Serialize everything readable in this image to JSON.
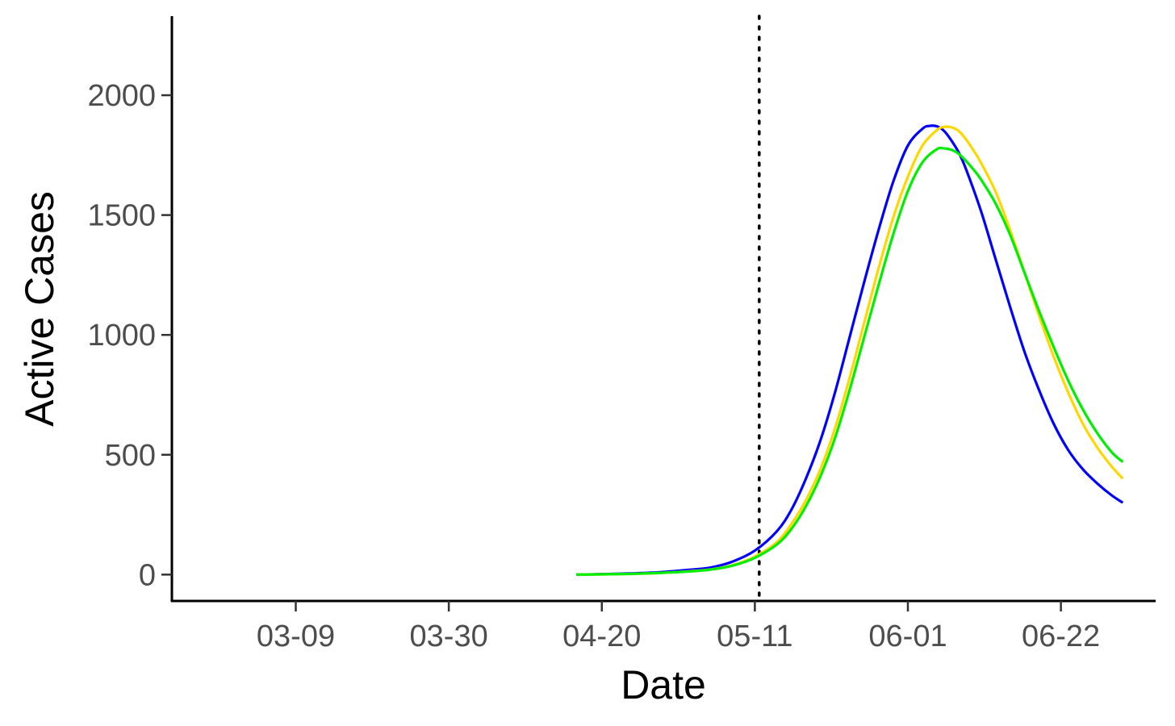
{
  "chart_data": {
    "type": "line",
    "title": "",
    "xlabel": "Date",
    "ylabel": "Active Cases",
    "x_tick_labels": [
      "03-09",
      "03-30",
      "04-20",
      "05-11",
      "06-01",
      "06-22"
    ],
    "x_tick_days": [
      0,
      21,
      42,
      63,
      84,
      105
    ],
    "x_range_days": [
      -17,
      118
    ],
    "y_ticks": [
      0,
      500,
      1000,
      1500,
      2000
    ],
    "ylim": [
      -110,
      2330
    ],
    "vline": {
      "label": "",
      "day": 63.6,
      "style": "dotted"
    },
    "grid": false,
    "legend": "none",
    "x_day_origin": "03-09",
    "series": [
      {
        "name": "blue",
        "color": "#0000ff",
        "x_days": [
          38.5,
          42,
          46,
          50,
          54,
          57,
          60,
          63,
          66,
          68,
          70,
          72,
          74,
          76,
          78,
          80,
          82,
          84,
          86,
          87,
          88,
          89,
          90,
          91,
          92,
          94,
          96,
          98,
          100,
          102,
          104,
          106,
          108,
          110,
          112,
          113.5
        ],
        "values": [
          0,
          2,
          5,
          10,
          20,
          30,
          55,
          100,
          180,
          270,
          400,
          560,
          760,
          990,
          1220,
          1440,
          1640,
          1790,
          1860,
          1872,
          1870,
          1850,
          1810,
          1760,
          1690,
          1520,
          1320,
          1120,
          930,
          770,
          630,
          520,
          440,
          380,
          330,
          300
        ]
      },
      {
        "name": "yellow",
        "color": "#ffd700",
        "x_days": [
          38.5,
          42,
          46,
          50,
          54,
          57,
          60,
          63,
          66,
          68,
          70,
          72,
          74,
          76,
          78,
          80,
          82,
          84,
          86,
          88,
          89,
          90,
          91,
          92,
          93,
          94,
          96,
          98,
          100,
          102,
          104,
          106,
          108,
          110,
          112,
          113.5
        ],
        "values": [
          0,
          1,
          3,
          7,
          14,
          22,
          40,
          75,
          135,
          210,
          310,
          440,
          610,
          820,
          1050,
          1280,
          1490,
          1660,
          1790,
          1855,
          1868,
          1866,
          1850,
          1815,
          1770,
          1720,
          1600,
          1440,
          1260,
          1080,
          910,
          760,
          630,
          530,
          450,
          400
        ]
      },
      {
        "name": "green",
        "color": "#00ee00",
        "x_days": [
          38.5,
          42,
          46,
          50,
          54,
          57,
          60,
          63,
          66,
          68,
          70,
          72,
          74,
          76,
          78,
          80,
          82,
          84,
          86,
          88,
          89,
          90,
          91,
          92,
          93,
          94,
          96,
          98,
          100,
          102,
          104,
          106,
          108,
          110,
          112,
          113.5
        ],
        "values": [
          0,
          1,
          3,
          7,
          13,
          21,
          38,
          70,
          125,
          190,
          285,
          410,
          570,
          770,
          990,
          1210,
          1420,
          1600,
          1720,
          1775,
          1778,
          1772,
          1755,
          1725,
          1690,
          1650,
          1550,
          1420,
          1260,
          1100,
          950,
          810,
          690,
          590,
          510,
          470
        ]
      }
    ]
  }
}
